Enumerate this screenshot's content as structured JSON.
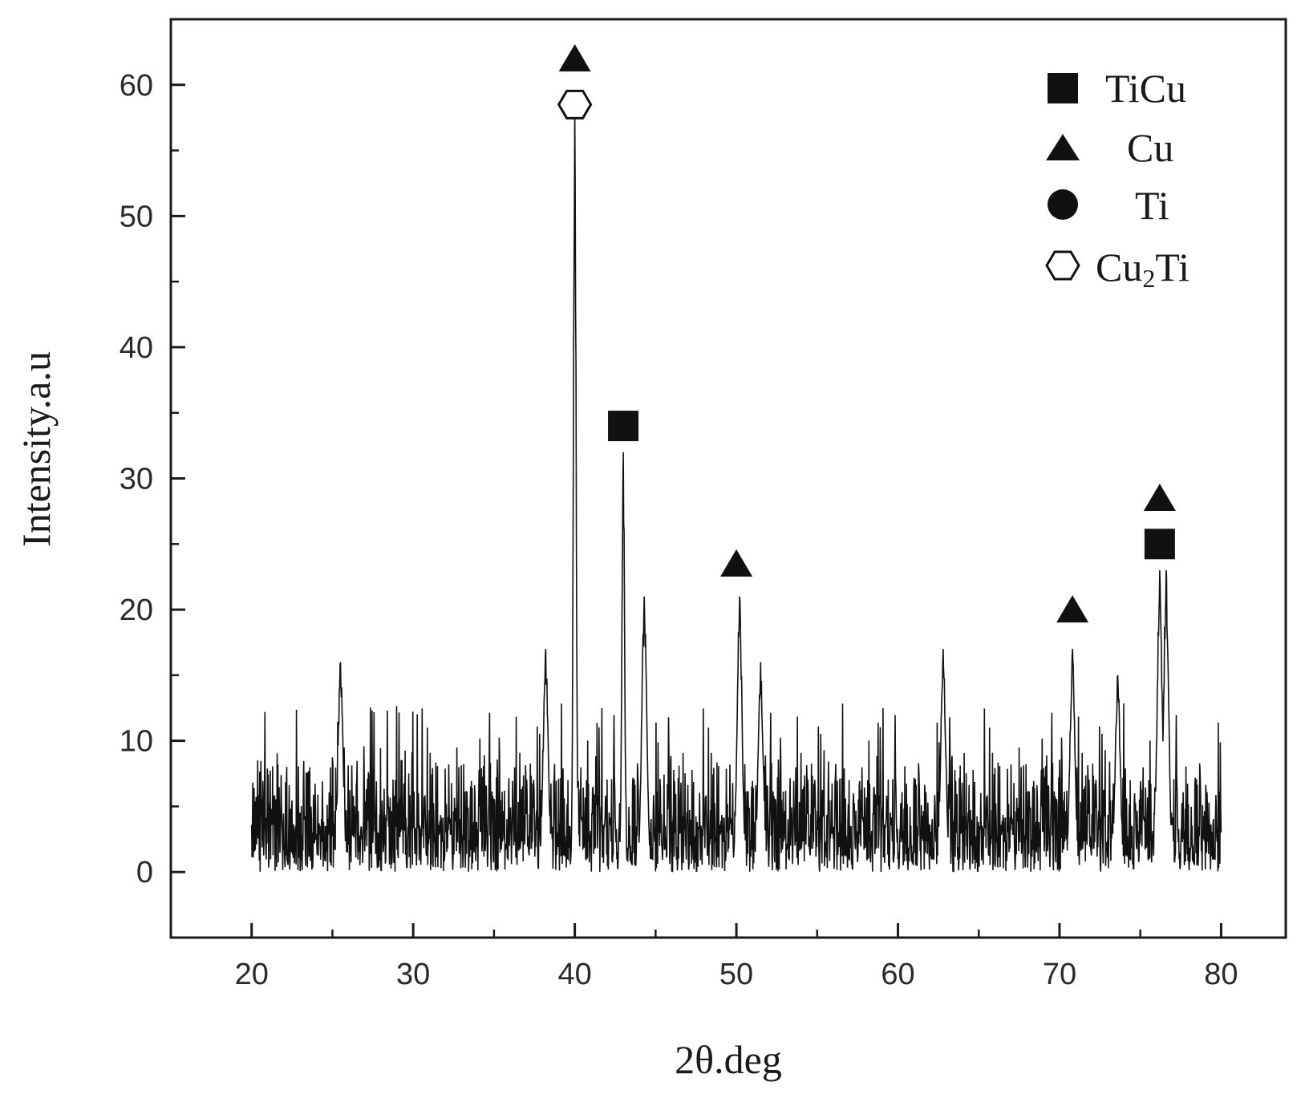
{
  "chart_data": {
    "type": "line",
    "title": "",
    "xlabel": "2θ.deg",
    "ylabel": "Intensity.a.u",
    "xlim": [
      15,
      84
    ],
    "ylim": [
      -5,
      65
    ],
    "xticks": [
      20,
      30,
      40,
      50,
      60,
      70,
      80
    ],
    "yticks": [
      0,
      10,
      20,
      30,
      40,
      50,
      60
    ],
    "grid": false,
    "legend_position": "top-right",
    "legend": [
      {
        "key": "ticu",
        "label": "TiCu",
        "marker": "filled-square"
      },
      {
        "key": "cu",
        "label": "Cu",
        "marker": "filled-triangle"
      },
      {
        "key": "ti",
        "label": "Ti",
        "marker": "filled-circle"
      },
      {
        "key": "cu2ti",
        "label_main": "Cu",
        "label_sub": "2",
        "label_tail": "Ti",
        "marker": "open-hexagon"
      }
    ],
    "series": [
      {
        "baseline_noise": {
          "x_range": [
            20,
            80
          ],
          "typical_max": 10
        },
        "peaks": [
          {
            "x": 25.5,
            "y": 16
          },
          {
            "x": 38.2,
            "y": 17
          },
          {
            "x": 40.0,
            "y": 58
          },
          {
            "x": 43.0,
            "y": 32
          },
          {
            "x": 44.3,
            "y": 21
          },
          {
            "x": 50.2,
            "y": 21
          },
          {
            "x": 51.5,
            "y": 16
          },
          {
            "x": 62.8,
            "y": 17
          },
          {
            "x": 70.8,
            "y": 17
          },
          {
            "x": 73.6,
            "y": 15
          },
          {
            "x": 76.2,
            "y": 23
          },
          {
            "x": 76.6,
            "y": 23
          }
        ]
      }
    ],
    "annotations": [
      {
        "x": 40.0,
        "y": 62,
        "marker": "filled-triangle",
        "phase": "Cu"
      },
      {
        "x": 40.0,
        "y": 58.5,
        "marker": "open-hexagon",
        "phase": "Cu2Ti"
      },
      {
        "x": 43.0,
        "y": 34,
        "marker": "filled-square",
        "phase": "TiCu"
      },
      {
        "x": 50.0,
        "y": 23.5,
        "marker": "filled-triangle",
        "phase": "Cu"
      },
      {
        "x": 70.8,
        "y": 20,
        "marker": "filled-triangle",
        "phase": "Cu"
      },
      {
        "x": 76.2,
        "y": 28.5,
        "marker": "filled-triangle",
        "phase": "Cu"
      },
      {
        "x": 76.2,
        "y": 25,
        "marker": "filled-square",
        "phase": "TiCu"
      }
    ]
  }
}
